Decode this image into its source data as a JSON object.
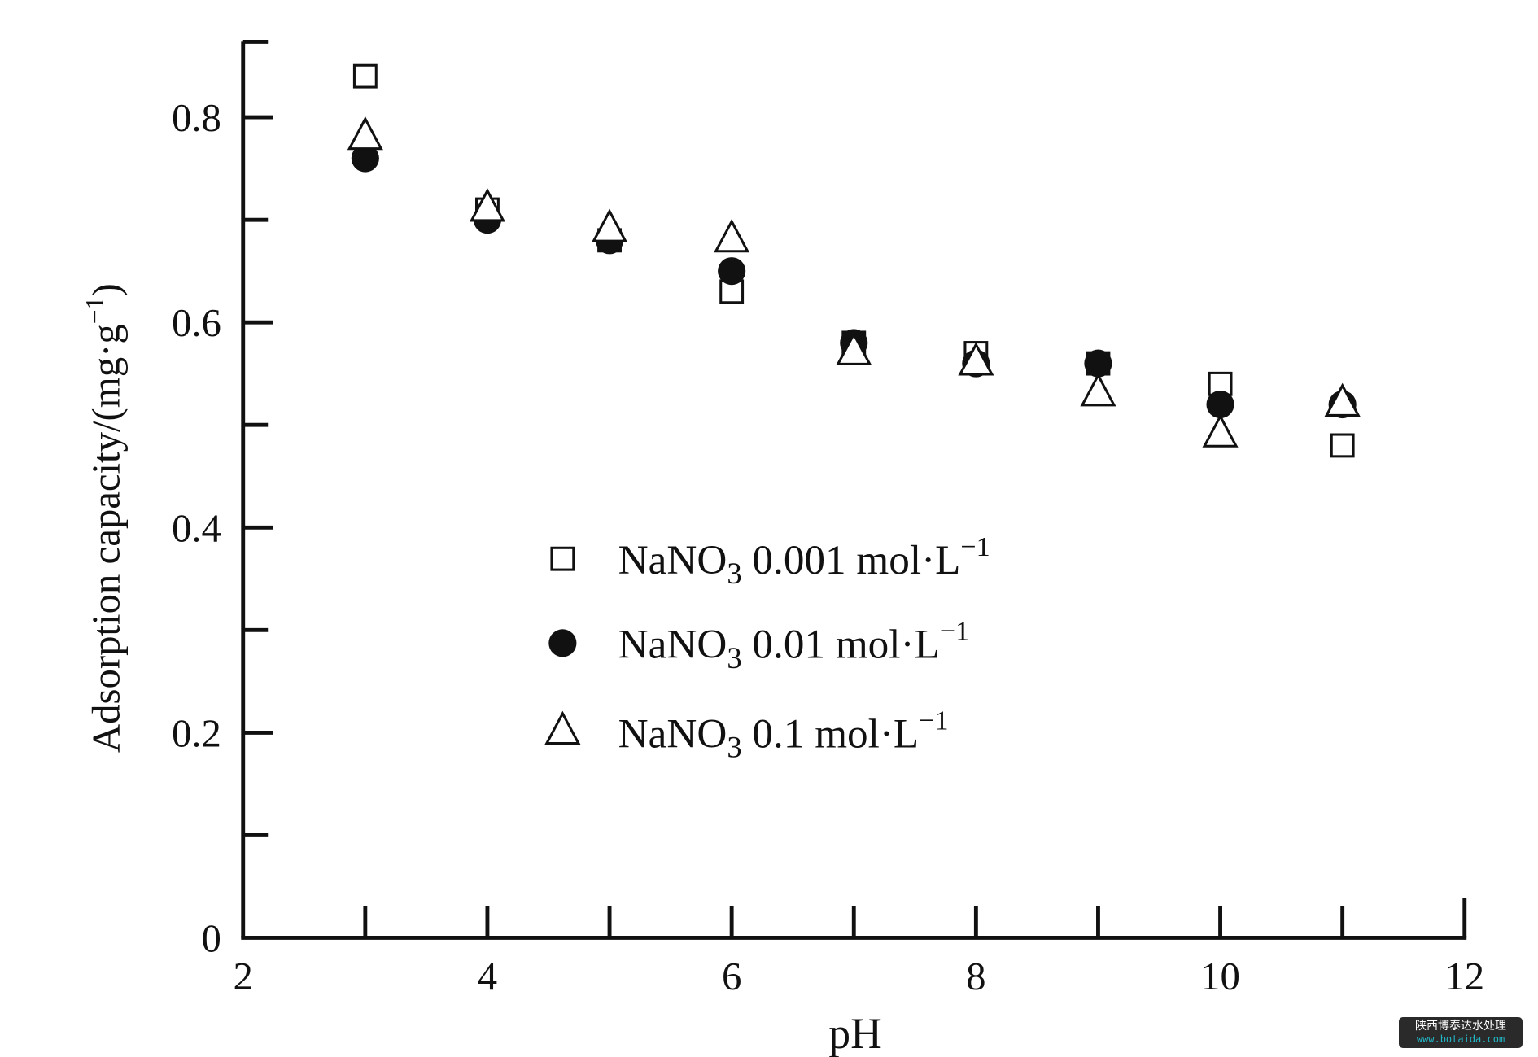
{
  "chart_data": {
    "type": "scatter",
    "xlabel": "pH",
    "ylabel": {
      "main": "Adsorption capacity/(mg·g",
      "sup": "−1",
      "tail": ")"
    },
    "xlim": [
      2,
      12
    ],
    "ylim": [
      0,
      0.875
    ],
    "xticks": [
      "2",
      "4",
      "6",
      "8",
      "10",
      "12"
    ],
    "yticks": [
      "0",
      "0.2",
      "0.4",
      "0.6",
      "0.8"
    ],
    "grid": false,
    "legend_position": "center",
    "x": [
      3,
      4,
      5,
      6,
      7,
      8,
      9,
      10,
      11
    ],
    "series": [
      {
        "name": "NaNO3 0.001 mol·L−1",
        "label": {
          "a": "NaNO",
          "sub": "3",
          "b": " 0.001 mol·L",
          "sup": "−1"
        },
        "marker": "open-square",
        "values": [
          0.84,
          0.71,
          0.68,
          0.63,
          0.58,
          0.57,
          0.56,
          0.54,
          0.48
        ]
      },
      {
        "name": "NaNO3 0.01 mol·L−1",
        "label": {
          "a": "NaNO",
          "sub": "3",
          "b": " 0.01 mol·L",
          "sup": "−1"
        },
        "marker": "filled-circle",
        "values": [
          0.76,
          0.7,
          0.68,
          0.65,
          0.58,
          0.56,
          0.56,
          0.52,
          0.52
        ]
      },
      {
        "name": "NaNO3 0.1 mol·L−1",
        "label": {
          "a": "NaNO",
          "sub": "3",
          "b": " 0.1 mol·L",
          "sup": "−1"
        },
        "marker": "open-triangle",
        "values": [
          0.78,
          0.71,
          0.69,
          0.68,
          0.57,
          0.56,
          0.53,
          0.49,
          0.52
        ]
      }
    ]
  },
  "watermark": {
    "cn": "陕西博泰达水处理",
    "url": "www.botaida.com"
  }
}
